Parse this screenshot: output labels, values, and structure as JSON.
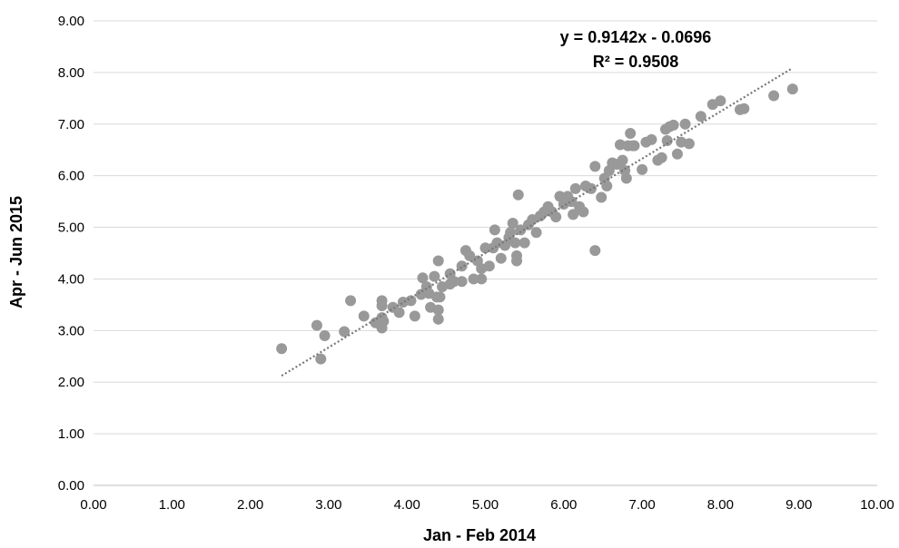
{
  "chart_data": {
    "type": "scatter",
    "title": "",
    "xlabel": "Jan - Feb 2014",
    "ylabel": "Apr - Jun 2015",
    "xlim": [
      0,
      10
    ],
    "ylim": [
      0,
      9
    ],
    "x_ticks": [
      "0.00",
      "1.00",
      "2.00",
      "3.00",
      "4.00",
      "5.00",
      "6.00",
      "7.00",
      "8.00",
      "9.00",
      "10.00"
    ],
    "y_ticks": [
      "0.00",
      "1.00",
      "2.00",
      "3.00",
      "4.00",
      "5.00",
      "6.00",
      "7.00",
      "8.00",
      "9.00"
    ],
    "grid": "horizontal",
    "legend": "none",
    "marker_color": "#999999",
    "trendline": {
      "style": "dotted",
      "color": "#777777",
      "slope": 0.9142,
      "intercept": -0.0696,
      "x_range": [
        2.4,
        8.9
      ],
      "equation": "y = 0.9142x - 0.0696",
      "r_squared": "R² = 0.9508"
    },
    "points": [
      [
        2.4,
        2.65
      ],
      [
        2.85,
        3.1
      ],
      [
        2.9,
        2.45
      ],
      [
        2.95,
        2.9
      ],
      [
        3.2,
        2.98
      ],
      [
        3.28,
        3.58
      ],
      [
        3.45,
        3.28
      ],
      [
        3.6,
        3.15
      ],
      [
        3.68,
        3.58
      ],
      [
        3.68,
        3.48
      ],
      [
        3.68,
        3.25
      ],
      [
        3.68,
        3.05
      ],
      [
        3.7,
        3.18
      ],
      [
        3.82,
        3.45
      ],
      [
        3.9,
        3.35
      ],
      [
        3.95,
        3.55
      ],
      [
        4.05,
        3.58
      ],
      [
        4.1,
        3.28
      ],
      [
        4.18,
        3.7
      ],
      [
        4.2,
        4.02
      ],
      [
        4.25,
        3.85
      ],
      [
        4.28,
        3.72
      ],
      [
        4.3,
        3.45
      ],
      [
        4.35,
        4.05
      ],
      [
        4.38,
        3.65
      ],
      [
        4.4,
        3.4
      ],
      [
        4.4,
        3.22
      ],
      [
        4.42,
        3.65
      ],
      [
        4.4,
        4.35
      ],
      [
        4.45,
        3.85
      ],
      [
        4.55,
        4.1
      ],
      [
        4.55,
        3.9
      ],
      [
        4.6,
        3.95
      ],
      [
        4.7,
        3.95
      ],
      [
        4.7,
        4.25
      ],
      [
        4.75,
        4.55
      ],
      [
        4.8,
        4.45
      ],
      [
        4.85,
        4.0
      ],
      [
        4.9,
        4.35
      ],
      [
        4.95,
        4.0
      ],
      [
        4.95,
        4.2
      ],
      [
        5.0,
        4.6
      ],
      [
        5.05,
        4.25
      ],
      [
        5.1,
        4.6
      ],
      [
        5.12,
        4.95
      ],
      [
        5.15,
        4.7
      ],
      [
        5.2,
        4.4
      ],
      [
        5.25,
        4.65
      ],
      [
        5.3,
        4.8
      ],
      [
        5.32,
        4.9
      ],
      [
        5.35,
        5.08
      ],
      [
        5.38,
        4.7
      ],
      [
        5.4,
        4.45
      ],
      [
        5.4,
        4.35
      ],
      [
        5.45,
        4.95
      ],
      [
        5.42,
        5.63
      ],
      [
        5.5,
        4.7
      ],
      [
        5.55,
        5.05
      ],
      [
        5.6,
        5.15
      ],
      [
        5.65,
        4.9
      ],
      [
        5.7,
        5.22
      ],
      [
        5.75,
        5.3
      ],
      [
        5.8,
        5.4
      ],
      [
        5.85,
        5.3
      ],
      [
        5.9,
        5.2
      ],
      [
        5.95,
        5.6
      ],
      [
        6.0,
        5.45
      ],
      [
        6.05,
        5.6
      ],
      [
        6.1,
        5.5
      ],
      [
        6.12,
        5.25
      ],
      [
        6.15,
        5.75
      ],
      [
        6.2,
        5.4
      ],
      [
        6.25,
        5.3
      ],
      [
        6.28,
        5.8
      ],
      [
        6.35,
        5.75
      ],
      [
        6.4,
        6.18
      ],
      [
        6.4,
        4.55
      ],
      [
        6.48,
        5.58
      ],
      [
        6.52,
        5.95
      ],
      [
        6.55,
        5.8
      ],
      [
        6.58,
        6.1
      ],
      [
        6.62,
        6.25
      ],
      [
        6.68,
        6.22
      ],
      [
        6.72,
        6.6
      ],
      [
        6.75,
        6.3
      ],
      [
        6.78,
        6.1
      ],
      [
        6.8,
        5.95
      ],
      [
        6.82,
        6.58
      ],
      [
        6.85,
        6.82
      ],
      [
        6.88,
        6.58
      ],
      [
        6.9,
        6.58
      ],
      [
        7.0,
        6.12
      ],
      [
        7.05,
        6.65
      ],
      [
        7.12,
        6.7
      ],
      [
        7.2,
        6.3
      ],
      [
        7.25,
        6.35
      ],
      [
        7.3,
        6.9
      ],
      [
        7.32,
        6.68
      ],
      [
        7.35,
        6.95
      ],
      [
        7.4,
        6.98
      ],
      [
        7.45,
        6.42
      ],
      [
        7.5,
        6.65
      ],
      [
        7.55,
        7.0
      ],
      [
        7.6,
        6.62
      ],
      [
        7.75,
        7.15
      ],
      [
        7.9,
        7.38
      ],
      [
        8.0,
        7.45
      ],
      [
        8.25,
        7.28
      ],
      [
        8.3,
        7.3
      ],
      [
        8.68,
        7.55
      ],
      [
        8.92,
        7.68
      ]
    ]
  }
}
